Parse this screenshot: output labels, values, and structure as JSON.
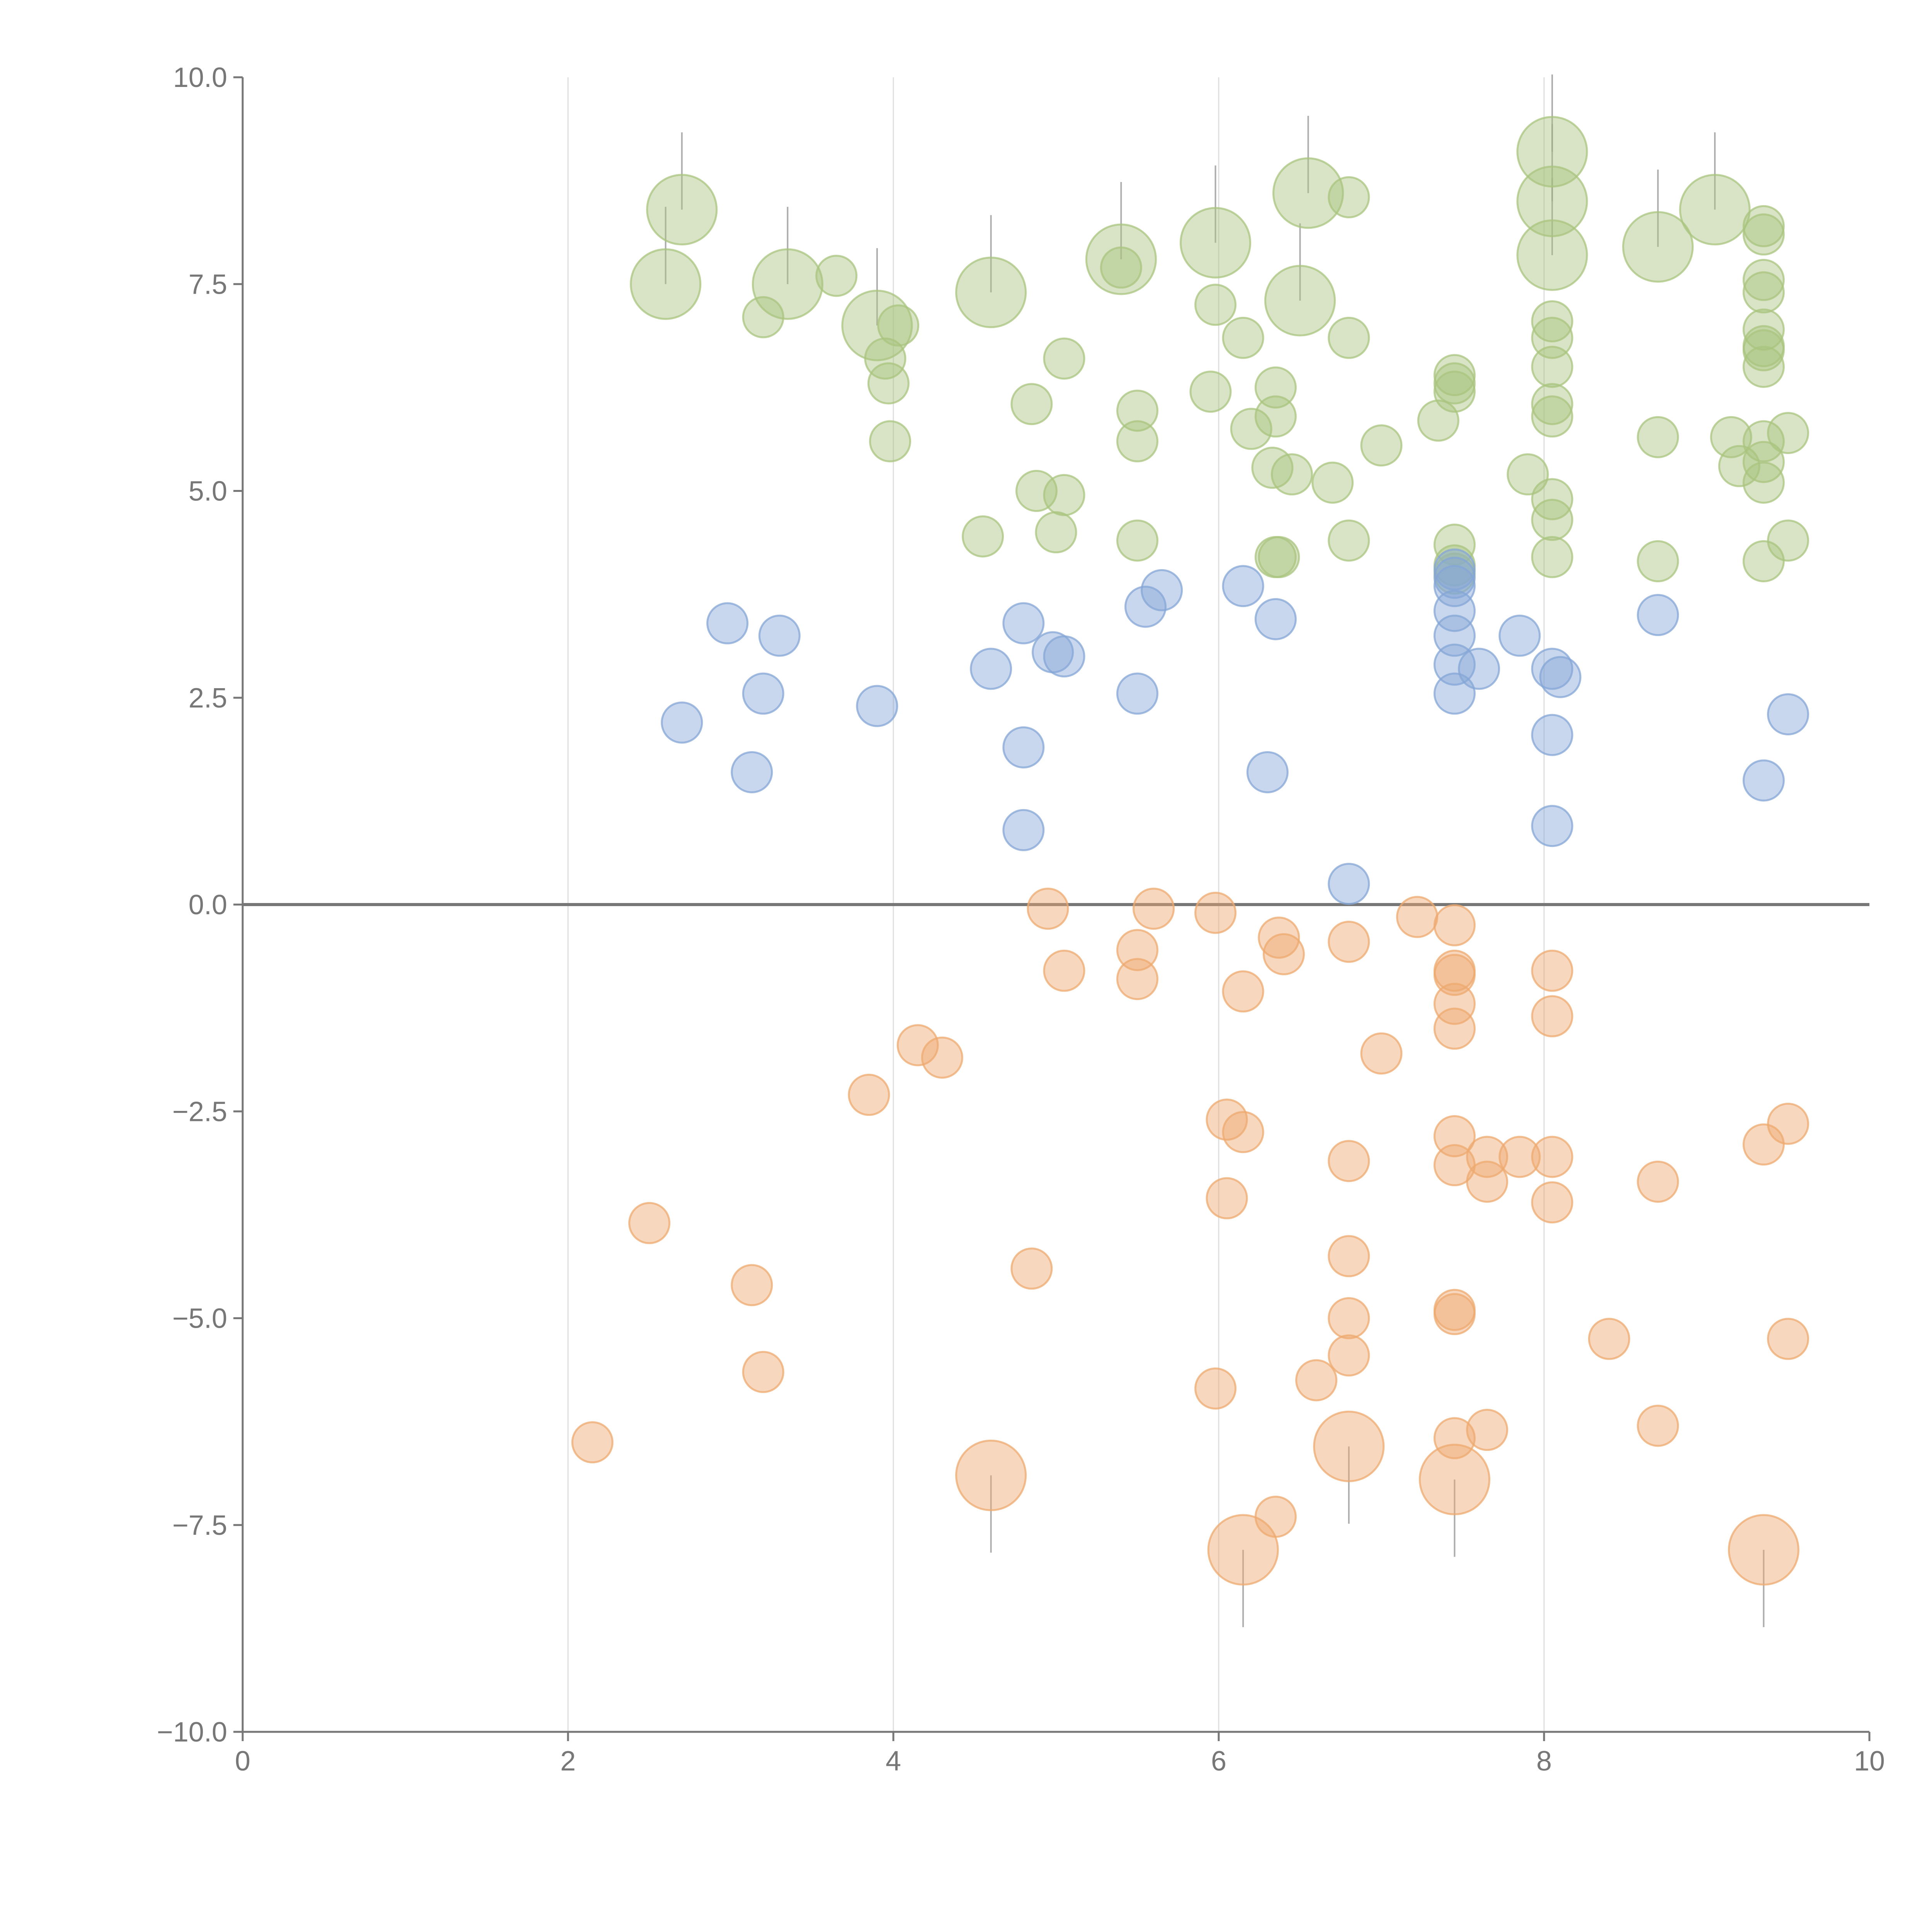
{
  "chart_data": {
    "type": "scatter",
    "title": "",
    "xlabel": "",
    "ylabel": "",
    "xlim": [
      0,
      10
    ],
    "ylim": [
      -10,
      10
    ],
    "x_ticks": [
      0,
      2,
      4,
      6,
      8,
      10
    ],
    "x_tick_labels": [
      "0",
      "2",
      "4",
      "6",
      "8",
      "10"
    ],
    "y_ticks": [
      -10,
      -7.5,
      -5,
      -2.5,
      0,
      2.5,
      5,
      7.5,
      10
    ],
    "y_tick_labels": [
      "−10.0",
      "−7.5",
      "−5.0",
      "−2.5",
      "0.0",
      "2.5",
      "5.0",
      "7.5",
      "10.0"
    ],
    "vertical_grid_at": [
      2,
      4,
      6,
      8
    ],
    "zero_line": true,
    "series": [
      {
        "color": "#a9c47f",
        "points": [
          [
            2.6,
            7.5,
            3
          ],
          [
            2.7,
            8.4,
            3
          ],
          [
            3.2,
            7.1,
            1
          ],
          [
            3.35,
            7.5,
            3
          ],
          [
            3.65,
            7.6,
            1
          ],
          [
            3.9,
            7.0,
            3
          ],
          [
            3.95,
            6.6,
            1
          ],
          [
            3.97,
            6.3,
            1
          ],
          [
            3.98,
            5.6,
            1
          ],
          [
            4.03,
            7.0,
            1
          ],
          [
            4.6,
            7.4,
            3
          ],
          [
            4.55,
            4.45,
            1
          ],
          [
            4.85,
            6.05,
            1
          ],
          [
            4.88,
            5.0,
            1
          ],
          [
            5.0,
            4.5,
            1
          ],
          [
            5.05,
            6.6,
            1
          ],
          [
            5.05,
            4.95,
            1
          ],
          [
            5.4,
            7.8,
            3
          ],
          [
            5.4,
            7.7,
            1
          ],
          [
            5.5,
            5.97,
            1
          ],
          [
            5.5,
            5.6,
            1
          ],
          [
            5.5,
            4.4,
            1
          ],
          [
            5.98,
            8.0,
            3
          ],
          [
            5.98,
            7.25,
            1
          ],
          [
            5.95,
            6.2,
            1
          ],
          [
            6.15,
            6.85,
            1
          ],
          [
            6.2,
            5.75,
            1
          ],
          [
            6.35,
            6.25,
            1
          ],
          [
            6.35,
            5.9,
            1
          ],
          [
            6.33,
            5.28,
            1
          ],
          [
            6.35,
            4.2,
            1
          ],
          [
            6.37,
            4.2,
            1
          ],
          [
            6.45,
            5.2,
            1
          ],
          [
            6.5,
            7.3,
            3
          ],
          [
            6.55,
            8.6,
            3
          ],
          [
            6.7,
            5.1,
            1
          ],
          [
            6.8,
            8.55,
            1
          ],
          [
            6.8,
            6.85,
            1
          ],
          [
            6.8,
            4.4,
            1
          ],
          [
            7.0,
            5.55,
            1
          ],
          [
            7.35,
            5.85,
            1
          ],
          [
            7.45,
            6.4,
            1
          ],
          [
            7.45,
            6.3,
            1
          ],
          [
            7.45,
            6.2,
            1
          ],
          [
            7.45,
            4.35,
            1
          ],
          [
            7.45,
            4.1,
            1
          ],
          [
            7.45,
            4.0,
            1
          ],
          [
            7.9,
            5.2,
            1
          ],
          [
            8.05,
            9.1,
            3
          ],
          [
            8.05,
            8.5,
            3
          ],
          [
            8.05,
            7.85,
            3
          ],
          [
            8.05,
            7.05,
            1
          ],
          [
            8.05,
            6.85,
            1
          ],
          [
            8.05,
            6.5,
            1
          ],
          [
            8.05,
            6.05,
            1
          ],
          [
            8.05,
            5.9,
            1
          ],
          [
            8.05,
            4.9,
            1
          ],
          [
            8.05,
            4.65,
            1
          ],
          [
            8.05,
            4.2,
            1
          ],
          [
            8.7,
            7.95,
            3
          ],
          [
            8.7,
            5.65,
            1
          ],
          [
            8.7,
            4.15,
            1
          ],
          [
            9.05,
            8.4,
            3
          ],
          [
            9.15,
            5.65,
            1
          ],
          [
            9.2,
            5.3,
            1
          ],
          [
            9.35,
            8.2,
            1
          ],
          [
            9.35,
            8.1,
            1
          ],
          [
            9.35,
            7.55,
            1
          ],
          [
            9.35,
            7.4,
            1
          ],
          [
            9.35,
            6.95,
            1
          ],
          [
            9.35,
            6.75,
            1
          ],
          [
            9.35,
            6.7,
            1
          ],
          [
            9.35,
            6.5,
            1
          ],
          [
            9.35,
            5.6,
            1
          ],
          [
            9.35,
            5.35,
            1
          ],
          [
            9.35,
            5.1,
            1
          ],
          [
            9.35,
            4.15,
            1
          ],
          [
            9.5,
            5.7,
            1
          ],
          [
            9.5,
            4.4,
            1
          ]
        ]
      },
      {
        "color": "#84a6d6",
        "points": [
          [
            2.7,
            2.2,
            1
          ],
          [
            2.98,
            3.4,
            1
          ],
          [
            3.13,
            1.6,
            1
          ],
          [
            3.2,
            2.55,
            1
          ],
          [
            3.3,
            3.25,
            1
          ],
          [
            3.9,
            2.4,
            1
          ],
          [
            4.6,
            2.85,
            1
          ],
          [
            4.8,
            3.4,
            1
          ],
          [
            4.8,
            1.9,
            1
          ],
          [
            4.8,
            0.9,
            1
          ],
          [
            4.98,
            3.05,
            1
          ],
          [
            5.05,
            3.0,
            1
          ],
          [
            5.5,
            2.55,
            1
          ],
          [
            5.55,
            3.6,
            1
          ],
          [
            5.65,
            3.8,
            1
          ],
          [
            6.15,
            3.85,
            1
          ],
          [
            6.3,
            1.6,
            1
          ],
          [
            6.35,
            3.45,
            1
          ],
          [
            6.8,
            0.25,
            1
          ],
          [
            7.45,
            4.05,
            1
          ],
          [
            7.45,
            3.95,
            1
          ],
          [
            7.45,
            3.85,
            1
          ],
          [
            7.45,
            3.55,
            1
          ],
          [
            7.45,
            3.25,
            1
          ],
          [
            7.45,
            2.9,
            1
          ],
          [
            7.45,
            2.55,
            1
          ],
          [
            7.6,
            2.85,
            1
          ],
          [
            7.85,
            3.25,
            1
          ],
          [
            8.05,
            2.85,
            1
          ],
          [
            8.1,
            2.75,
            1
          ],
          [
            8.05,
            2.05,
            1
          ],
          [
            8.05,
            0.95,
            1
          ],
          [
            8.7,
            3.5,
            1
          ],
          [
            9.35,
            1.5,
            1
          ],
          [
            9.5,
            2.3,
            1
          ]
        ]
      },
      {
        "color": "#eda96f",
        "points": [
          [
            2.15,
            -6.5,
            1
          ],
          [
            2.5,
            -3.85,
            1
          ],
          [
            3.13,
            -4.6,
            1
          ],
          [
            3.2,
            -5.65,
            1
          ],
          [
            3.85,
            -2.3,
            1
          ],
          [
            4.15,
            -1.7,
            1
          ],
          [
            4.3,
            -1.85,
            1
          ],
          [
            4.6,
            -6.9,
            3
          ],
          [
            4.85,
            -4.4,
            1
          ],
          [
            4.95,
            -0.05,
            1
          ],
          [
            5.05,
            -0.8,
            1
          ],
          [
            5.5,
            -0.55,
            1
          ],
          [
            5.5,
            -0.9,
            1
          ],
          [
            5.6,
            -0.05,
            1
          ],
          [
            5.98,
            -0.1,
            1
          ],
          [
            5.98,
            -5.85,
            1
          ],
          [
            6.05,
            -2.6,
            1
          ],
          [
            6.05,
            -3.55,
            1
          ],
          [
            6.15,
            -2.75,
            1
          ],
          [
            6.15,
            -1.05,
            1
          ],
          [
            6.15,
            -7.8,
            3
          ],
          [
            6.35,
            -7.4,
            1
          ],
          [
            6.37,
            -0.4,
            1
          ],
          [
            6.4,
            -0.6,
            1
          ],
          [
            6.6,
            -5.75,
            1
          ],
          [
            6.8,
            -0.45,
            1
          ],
          [
            6.8,
            -3.1,
            1
          ],
          [
            6.8,
            -4.25,
            1
          ],
          [
            6.8,
            -5.0,
            1
          ],
          [
            6.8,
            -5.45,
            1
          ],
          [
            6.8,
            -6.55,
            3
          ],
          [
            7.0,
            -1.8,
            1
          ],
          [
            7.22,
            -0.15,
            1
          ],
          [
            7.45,
            -0.25,
            1
          ],
          [
            7.45,
            -0.8,
            1
          ],
          [
            7.45,
            -0.85,
            1
          ],
          [
            7.45,
            -1.2,
            1
          ],
          [
            7.45,
            -1.5,
            1
          ],
          [
            7.45,
            -2.8,
            1
          ],
          [
            7.45,
            -3.15,
            1
          ],
          [
            7.45,
            -4.9,
            1
          ],
          [
            7.45,
            -4.95,
            1
          ],
          [
            7.45,
            -6.45,
            1
          ],
          [
            7.45,
            -6.95,
            3
          ],
          [
            7.65,
            -3.05,
            1
          ],
          [
            7.65,
            -3.35,
            1
          ],
          [
            7.65,
            -6.35,
            1
          ],
          [
            7.85,
            -3.05,
            1
          ],
          [
            8.05,
            -0.8,
            1
          ],
          [
            8.05,
            -1.35,
            1
          ],
          [
            8.05,
            -3.05,
            1
          ],
          [
            8.05,
            -3.6,
            1
          ],
          [
            8.4,
            -5.25,
            1
          ],
          [
            8.7,
            -3.35,
            1
          ],
          [
            8.7,
            -6.3,
            1
          ],
          [
            9.35,
            -2.9,
            1
          ],
          [
            9.35,
            -7.8,
            3
          ],
          [
            9.5,
            -2.65,
            1
          ],
          [
            9.5,
            -5.25,
            1
          ]
        ]
      }
    ]
  }
}
